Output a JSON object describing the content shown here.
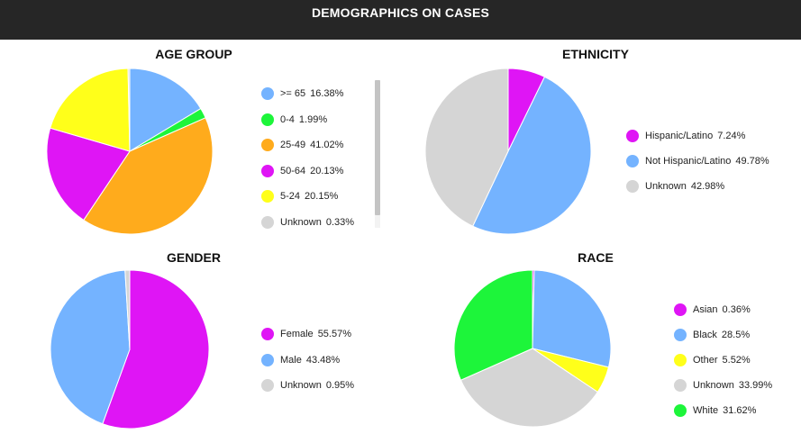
{
  "header": {
    "title": "DEMOGRAPHICS ON CASES"
  },
  "colors": {
    "header_bg": "#262626",
    "slice_border": "#ffffff"
  },
  "chart_data": [
    {
      "id": "age",
      "type": "pie",
      "title": "AGE GROUP",
      "labels": [
        ">= 65",
        "0-4",
        "25-49",
        "50-64",
        "5-24",
        "Unknown"
      ],
      "values": [
        16.38,
        1.99,
        41.02,
        20.13,
        20.15,
        0.33
      ],
      "display_values": [
        "16.38%",
        "1.99%",
        "41.02%",
        "20.13%",
        "20.15%",
        "0.33%"
      ],
      "colors": [
        "#74b3ff",
        "#1df53a",
        "#ffab1c",
        "#df15f5",
        "#ffff1a",
        "#d5d5d5"
      ],
      "legend_position": "right",
      "legend_scrollable": true
    },
    {
      "id": "ethnicity",
      "type": "pie",
      "title": "ETHNICITY",
      "labels": [
        "Hispanic/Latino",
        "Not Hispanic/Latino",
        "Unknown"
      ],
      "values": [
        7.24,
        49.78,
        42.98
      ],
      "display_values": [
        "7.24%",
        "49.78%",
        "42.98%"
      ],
      "colors": [
        "#df15f5",
        "#74b3ff",
        "#d5d5d5"
      ],
      "legend_position": "right"
    },
    {
      "id": "gender",
      "type": "pie",
      "title": "GENDER",
      "labels": [
        "Female",
        "Male",
        "Unknown"
      ],
      "values": [
        55.57,
        43.48,
        0.95
      ],
      "display_values": [
        "55.57%",
        "43.48%",
        "0.95%"
      ],
      "colors": [
        "#df15f5",
        "#74b3ff",
        "#d5d5d5"
      ],
      "legend_position": "right"
    },
    {
      "id": "race",
      "type": "pie",
      "title": "RACE",
      "labels": [
        "Asian",
        "Black",
        "Other",
        "Unknown",
        "White"
      ],
      "values": [
        0.36,
        28.5,
        5.52,
        33.99,
        31.62
      ],
      "display_values": [
        "0.36%",
        "28.5%",
        "5.52%",
        "33.99%",
        "31.62%"
      ],
      "colors": [
        "#df15f5",
        "#74b3ff",
        "#ffff1a",
        "#d5d5d5",
        "#1df53a"
      ],
      "legend_position": "right"
    }
  ]
}
